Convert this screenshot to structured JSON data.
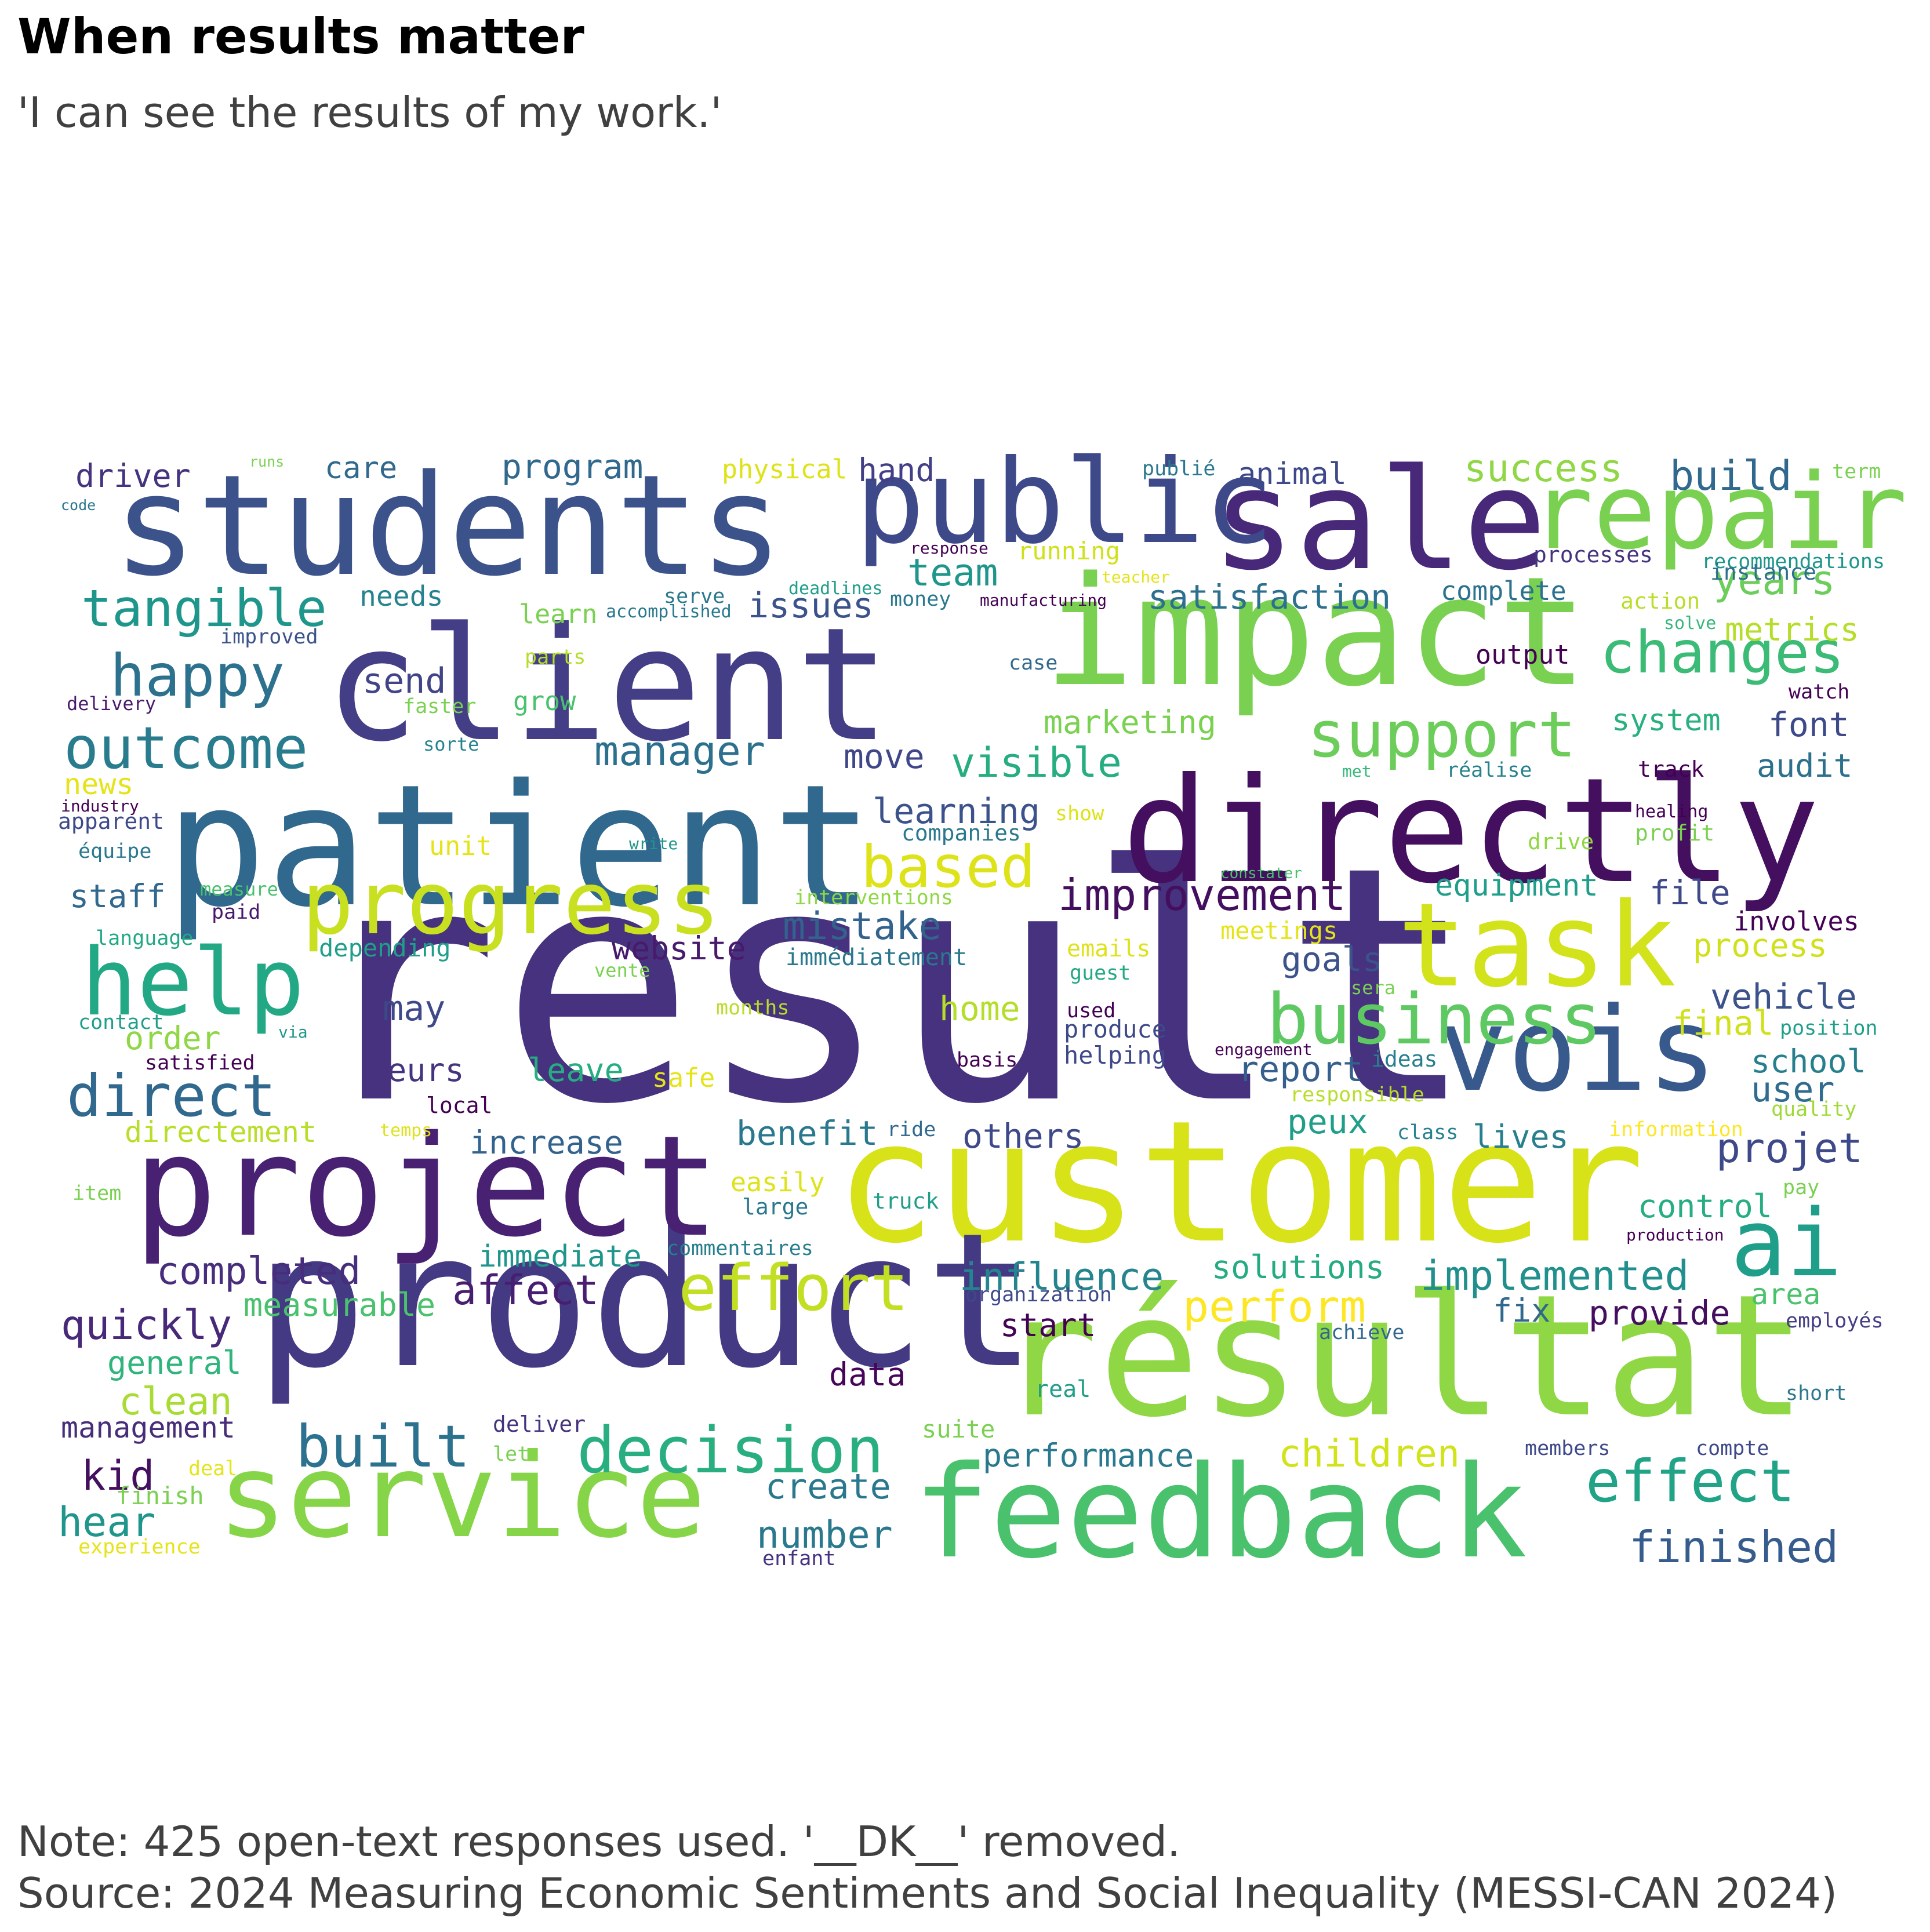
{
  "title": "When results matter",
  "subtitle": "'I can see the results of my work.'",
  "note": "Note: 425 open-text responses used. '__DK__' removed.",
  "source": "Source: 2024 Measuring Economic Sentiments and Social Inequality (MESSI-CAN 2024)",
  "words": [
    {
      "text": "result",
      "color": "#46327e"
    },
    {
      "text": "customer",
      "color": "#d8e219"
    },
    {
      "text": "product",
      "color": "#443983"
    },
    {
      "text": "résultat",
      "color": "#8fd744"
    },
    {
      "text": "patient",
      "color": "#31688e"
    },
    {
      "text": "client",
      "color": "#433e85"
    },
    {
      "text": "impact",
      "color": "#7ad151"
    },
    {
      "text": "directly",
      "color": "#440f5e"
    },
    {
      "text": "students",
      "color": "#3b528b"
    },
    {
      "text": "project",
      "color": "#482173"
    },
    {
      "text": "service",
      "color": "#86d549"
    },
    {
      "text": "feedback",
      "color": "#4ac16d"
    },
    {
      "text": "sale",
      "color": "#482878"
    },
    {
      "text": "public",
      "color": "#3e4989"
    },
    {
      "text": "repair",
      "color": "#7ad151"
    },
    {
      "text": "task",
      "color": "#d2e21b"
    },
    {
      "text": "vois",
      "color": "#38598c"
    },
    {
      "text": "progress",
      "color": "#c8e020"
    },
    {
      "text": "help",
      "color": "#22a884"
    },
    {
      "text": "business",
      "color": "#5ec962"
    },
    {
      "text": "ai",
      "color": "#1f9e89"
    },
    {
      "text": "decision",
      "color": "#29af7f"
    },
    {
      "text": "effort",
      "color": "#c2df23"
    },
    {
      "text": "tangible",
      "color": "#1f968b"
    },
    {
      "text": "happy",
      "color": "#2c728e"
    },
    {
      "text": "outcome",
      "color": "#287c8e"
    },
    {
      "text": "direct",
      "color": "#31688e"
    },
    {
      "text": "support",
      "color": "#6ccd5a"
    },
    {
      "text": "changes",
      "color": "#3bbb75"
    },
    {
      "text": "based",
      "color": "#dde318"
    },
    {
      "text": "built",
      "color": "#2c728e"
    },
    {
      "text": "effect",
      "color": "#20a386"
    },
    {
      "text": "improvement",
      "color": "#440f5e"
    },
    {
      "text": "perform",
      "color": "#fde725"
    },
    {
      "text": "implemented",
      "color": "#218f8d"
    },
    {
      "text": "influence",
      "color": "#25858e"
    },
    {
      "text": "completed",
      "color": "#472d7b"
    },
    {
      "text": "affect",
      "color": "#481f70"
    },
    {
      "text": "manager",
      "color": "#2d708e"
    },
    {
      "text": "visible",
      "color": "#26ad81"
    },
    {
      "text": "mistake",
      "color": "#33638d"
    },
    {
      "text": "learning",
      "color": "#3b528b"
    },
    {
      "text": "satisfaction",
      "color": "#2d708e"
    },
    {
      "text": "success",
      "color": "#8fd744"
    },
    {
      "text": "build",
      "color": "#31688e"
    },
    {
      "text": "years",
      "color": "#6ccd5a"
    },
    {
      "text": "metrics",
      "color": "#b5de2b"
    },
    {
      "text": "team",
      "color": "#1f968b"
    },
    {
      "text": "issues",
      "color": "#3b528b"
    },
    {
      "text": "send",
      "color": "#414487"
    },
    {
      "text": "marketing",
      "color": "#7ad151"
    },
    {
      "text": "finished",
      "color": "#365c8d"
    },
    {
      "text": "number",
      "color": "#2a788e"
    },
    {
      "text": "create",
      "color": "#2a788e"
    },
    {
      "text": "children",
      "color": "#d2e21b"
    },
    {
      "text": "performance",
      "color": "#2a788e"
    },
    {
      "text": "measurable",
      "color": "#4ac16d"
    },
    {
      "text": "quickly",
      "color": "#482878"
    },
    {
      "text": "general",
      "color": "#2fb47c"
    },
    {
      "text": "clean",
      "color": "#a8db34"
    },
    {
      "text": "management",
      "color": "#472c7a"
    },
    {
      "text": "kid",
      "color": "#440f5e"
    },
    {
      "text": "hear",
      "color": "#1f968b"
    },
    {
      "text": "immediate",
      "color": "#1f968b"
    },
    {
      "text": "solutions",
      "color": "#25ab82"
    },
    {
      "text": "provide",
      "color": "#440f5e"
    },
    {
      "text": "fix",
      "color": "#31688e"
    },
    {
      "text": "area",
      "color": "#4ac16d"
    },
    {
      "text": "start",
      "color": "#440154"
    },
    {
      "text": "data",
      "color": "#450559"
    },
    {
      "text": "control",
      "color": "#26ad81"
    },
    {
      "text": "projet",
      "color": "#3e4989"
    },
    {
      "text": "school",
      "color": "#277f8e"
    },
    {
      "text": "user",
      "color": "#2f6c8e"
    },
    {
      "text": "lives",
      "color": "#277f8e"
    },
    {
      "text": "peux",
      "color": "#1f9e89"
    },
    {
      "text": "report",
      "color": "#355f8d"
    },
    {
      "text": "vehicle",
      "color": "#3b528b"
    },
    {
      "text": "final",
      "color": "#d0e11c"
    },
    {
      "text": "process",
      "color": "#d0e11c"
    },
    {
      "text": "goals",
      "color": "#3b528b"
    },
    {
      "text": "file",
      "color": "#3e4989"
    },
    {
      "text": "equipment",
      "color": "#1f9e89"
    },
    {
      "text": "involves",
      "color": "#440154"
    },
    {
      "text": "audit",
      "color": "#2d708e"
    },
    {
      "text": "font",
      "color": "#3e4989"
    },
    {
      "text": "system",
      "color": "#2ab07f"
    },
    {
      "text": "output",
      "color": "#440154"
    },
    {
      "text": "complete",
      "color": "#2c728e"
    },
    {
      "text": "processes",
      "color": "#46337f"
    },
    {
      "text": "recommendations",
      "color": "#1f968b"
    },
    {
      "text": "action",
      "color": "#b8de29"
    },
    {
      "text": "solve",
      "color": "#35b779"
    },
    {
      "text": "instance",
      "color": "#2d708e"
    },
    {
      "text": "watch",
      "color": "#440154"
    },
    {
      "text": "term",
      "color": "#7ad151"
    },
    {
      "text": "track",
      "color": "#440154"
    },
    {
      "text": "réalise",
      "color": "#26828e"
    },
    {
      "text": "healing",
      "color": "#440154"
    },
    {
      "text": "profit",
      "color": "#7ad151"
    },
    {
      "text": "drive",
      "color": "#8fd744"
    },
    {
      "text": "met",
      "color": "#35b779"
    },
    {
      "text": "show",
      "color": "#dde318"
    },
    {
      "text": "constater",
      "color": "#4ac16d"
    },
    {
      "text": "companies",
      "color": "#2a788e"
    },
    {
      "text": "move",
      "color": "#3f4788"
    },
    {
      "text": "website",
      "color": "#481a6c"
    },
    {
      "text": "immédiatement",
      "color": "#2a788e"
    },
    {
      "text": "interventions",
      "color": "#8fd744"
    },
    {
      "text": "emails",
      "color": "#dde318"
    },
    {
      "text": "meetings",
      "color": "#e5e419"
    },
    {
      "text": "guest",
      "color": "#22a884"
    },
    {
      "text": "used",
      "color": "#440154"
    },
    {
      "text": "produce",
      "color": "#3e4989"
    },
    {
      "text": "helping",
      "color": "#3e4989"
    },
    {
      "text": "basis",
      "color": "#440154"
    },
    {
      "text": "engagement",
      "color": "#440154"
    },
    {
      "text": "ideas",
      "color": "#277f8e"
    },
    {
      "text": "responsible",
      "color": "#b8de29"
    },
    {
      "text": "sera",
      "color": "#7ad151"
    },
    {
      "text": "position",
      "color": "#1f9e89"
    },
    {
      "text": "quality",
      "color": "#a0da39"
    },
    {
      "text": "information",
      "color": "#fde725"
    },
    {
      "text": "class",
      "color": "#26828e"
    },
    {
      "text": "pay",
      "color": "#7ad151"
    },
    {
      "text": "production",
      "color": "#440154"
    },
    {
      "text": "employés",
      "color": "#433e85"
    },
    {
      "text": "achieve",
      "color": "#31688e"
    },
    {
      "text": "organization",
      "color": "#3e4989"
    },
    {
      "text": "real",
      "color": "#1f9e89"
    },
    {
      "text": "short",
      "color": "#2a788e"
    },
    {
      "text": "members",
      "color": "#3e4989"
    },
    {
      "text": "compte",
      "color": "#3e4989"
    },
    {
      "text": "others",
      "color": "#3e4989"
    },
    {
      "text": "benefit",
      "color": "#2a788e"
    },
    {
      "text": "ride",
      "color": "#31688e"
    },
    {
      "text": "truck",
      "color": "#1f9e89"
    },
    {
      "text": "easily",
      "color": "#dde318"
    },
    {
      "text": "large",
      "color": "#2a788e"
    },
    {
      "text": "commentaires",
      "color": "#277f8e"
    },
    {
      "text": "increase",
      "color": "#33638d"
    },
    {
      "text": "local",
      "color": "#440154"
    },
    {
      "text": "temps",
      "color": "#dde318"
    },
    {
      "text": "directement",
      "color": "#b8de29"
    },
    {
      "text": "leave",
      "color": "#26ad81"
    },
    {
      "text": "safe",
      "color": "#e5e419"
    },
    {
      "text": "leurs",
      "color": "#46337f"
    },
    {
      "text": "may",
      "color": "#3e4989"
    },
    {
      "text": "home",
      "color": "#b5de2b"
    },
    {
      "text": "months",
      "color": "#b8de29"
    },
    {
      "text": "vente",
      "color": "#7ad151"
    },
    {
      "text": "via",
      "color": "#1f968b"
    },
    {
      "text": "satisfied",
      "color": "#440154"
    },
    {
      "text": "contact",
      "color": "#1f9e89"
    },
    {
      "text": "order",
      "color": "#8fd744"
    },
    {
      "text": "staff",
      "color": "#31688e"
    },
    {
      "text": "depending",
      "color": "#1f9e89"
    },
    {
      "text": "language",
      "color": "#22a884"
    },
    {
      "text": "paid",
      "color": "#481a6c"
    },
    {
      "text": "measure",
      "color": "#4ac16d"
    },
    {
      "text": "unit",
      "color": "#e5e419"
    },
    {
      "text": "write",
      "color": "#1f968b"
    },
    {
      "text": "apparent",
      "color": "#3e4989"
    },
    {
      "text": "équipe",
      "color": "#2a788e"
    },
    {
      "text": "industry",
      "color": "#440154"
    },
    {
      "text": "news",
      "color": "#e5e419"
    },
    {
      "text": "sorte",
      "color": "#26828e"
    },
    {
      "text": "faster",
      "color": "#7ad151"
    },
    {
      "text": "grow",
      "color": "#4ac16d"
    },
    {
      "text": "delivery",
      "color": "#481a6c"
    },
    {
      "text": "improved",
      "color": "#3b528b"
    },
    {
      "text": "parts",
      "color": "#b5de2b"
    },
    {
      "text": "learn",
      "color": "#7ad151"
    },
    {
      "text": "accomplished",
      "color": "#2a788e"
    },
    {
      "text": "needs",
      "color": "#26828e"
    },
    {
      "text": "care",
      "color": "#31688e"
    },
    {
      "text": "program",
      "color": "#31688e"
    },
    {
      "text": "physical",
      "color": "#dde318"
    },
    {
      "text": "hand",
      "color": "#433e85"
    },
    {
      "text": "publié",
      "color": "#2a788e"
    },
    {
      "text": "animal",
      "color": "#3e4989"
    },
    {
      "text": "response",
      "color": "#440154"
    },
    {
      "text": "running",
      "color": "#d0e11c"
    },
    {
      "text": "teacher",
      "color": "#e5e419"
    },
    {
      "text": "deadlines",
      "color": "#1f9e89"
    },
    {
      "text": "money",
      "color": "#2a788e"
    },
    {
      "text": "manufacturing",
      "color": "#440154"
    },
    {
      "text": "serve",
      "color": "#2a788e"
    },
    {
      "text": "case",
      "color": "#31688e"
    },
    {
      "text": "driver",
      "color": "#46337f"
    },
    {
      "text": "runs",
      "color": "#7ad151"
    },
    {
      "text": "code",
      "color": "#2a788e"
    },
    {
      "text": "item",
      "color": "#7ad151"
    },
    {
      "text": "deal",
      "color": "#e5e419"
    },
    {
      "text": "finish",
      "color": "#7ad151"
    },
    {
      "text": "experience",
      "color": "#e5e419"
    },
    {
      "text": "enfant",
      "color": "#46337f"
    },
    {
      "text": "suite",
      "color": "#7ad151"
    },
    {
      "text": "let",
      "color": "#7ad151"
    },
    {
      "text": "deliver",
      "color": "#46337f"
    }
  ]
}
